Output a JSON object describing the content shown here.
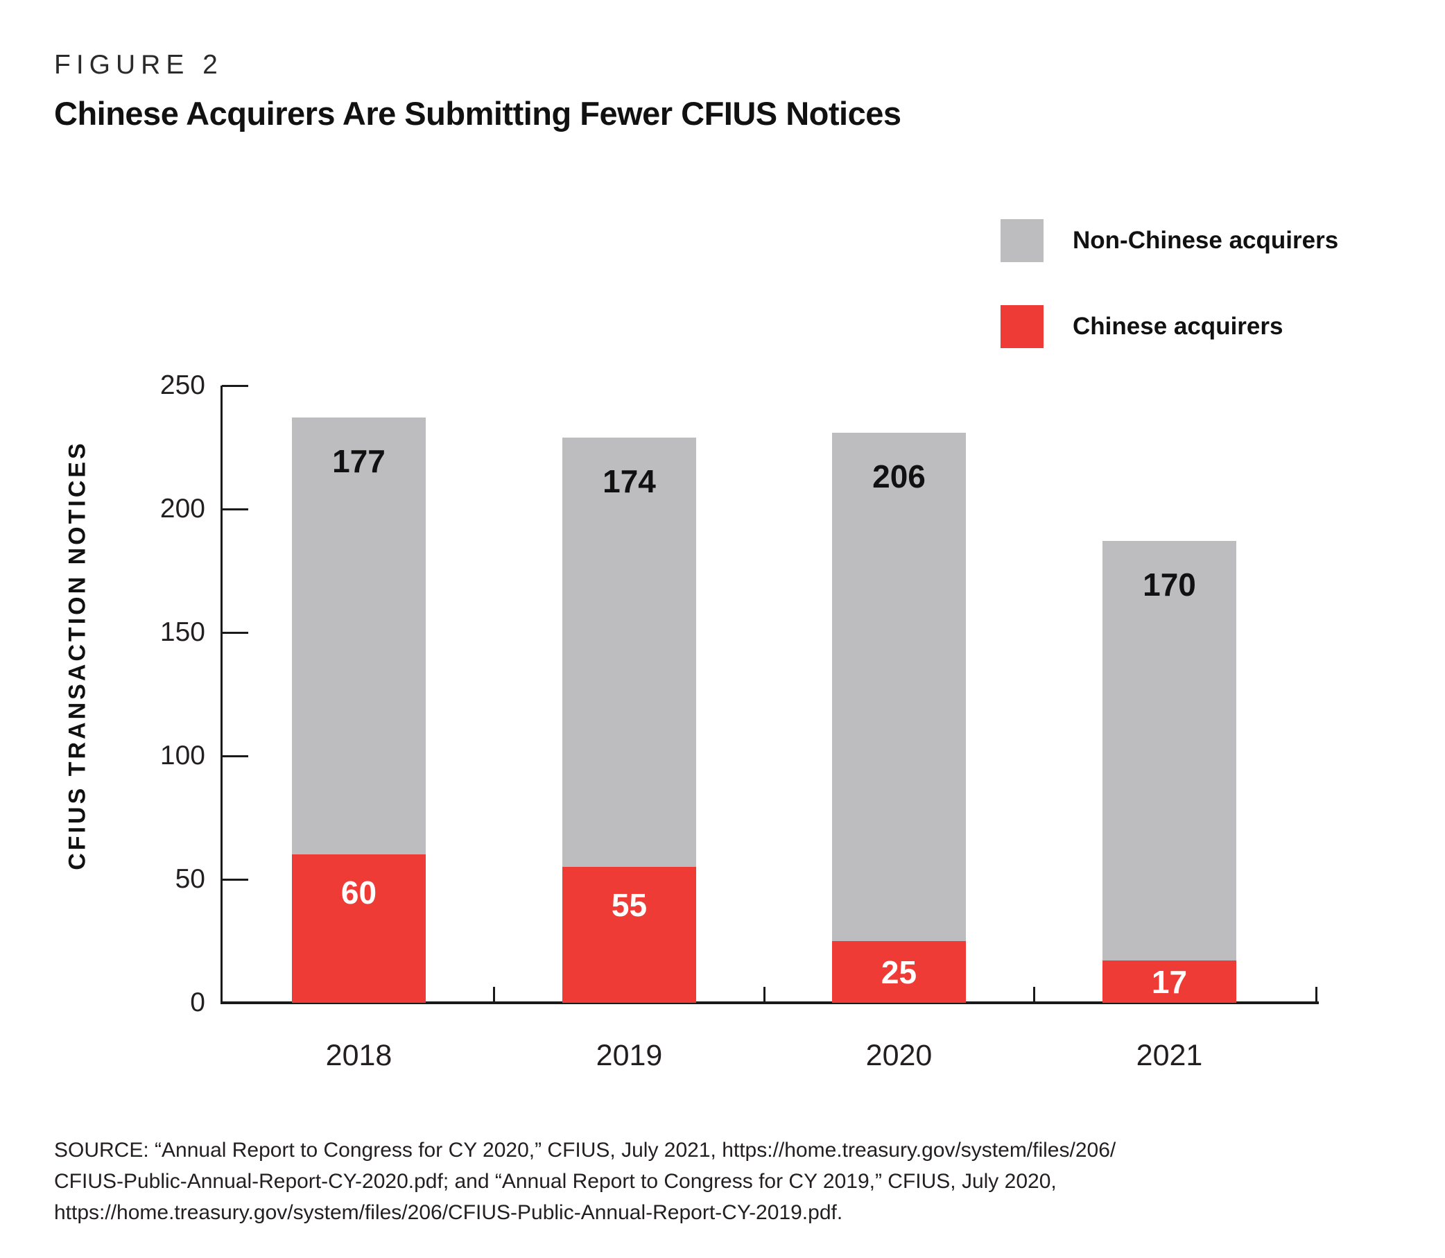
{
  "figure_label": "FIGURE 2",
  "title": "Chinese Acquirers Are Submitting Fewer CFIUS Notices",
  "legend": {
    "items": [
      {
        "label": "Non-Chinese acquirers",
        "color": "#BDBDBF"
      },
      {
        "label": "Chinese acquirers",
        "color": "#EE3B35"
      }
    ]
  },
  "chart_data": {
    "type": "bar",
    "stacked": true,
    "categories": [
      "2018",
      "2019",
      "2020",
      "2021"
    ],
    "series": [
      {
        "name": "Chinese acquirers",
        "color": "#EE3B35",
        "label_color": "#FFFFFF",
        "values": [
          60,
          55,
          25,
          17
        ]
      },
      {
        "name": "Non-Chinese acquirers",
        "color": "#BDBDBF",
        "label_color": "#111111",
        "values": [
          177,
          174,
          206,
          170
        ]
      }
    ],
    "totals": [
      237,
      229,
      231,
      187
    ],
    "xlabel": "",
    "ylabel": "CFIUS TRANSACTION NOTICES",
    "ylim": [
      0,
      250
    ],
    "yticks": [
      0,
      50,
      100,
      150,
      200,
      250
    ],
    "grid": false,
    "legend_position": "top-right",
    "value_labels": "shown-inside-segments"
  },
  "source": {
    "lines": [
      "SOURCE: “Annual Report to Congress for CY 2020,” CFIUS, July 2021, https://home.treasury.gov/system/files/206/",
      "CFIUS-Public-Annual-Report-CY-2020.pdf; and “Annual Report to Congress for CY 2019,” CFIUS, July 2020,",
      "https://home.treasury.gov/system/files/206/CFIUS-Public-Annual-Report-CY-2019.pdf."
    ]
  },
  "colors": {
    "chinese_red": "#EE3B35",
    "non_chinese_gray": "#BDBDBF",
    "axis_black": "#1A1A1A",
    "text": "#231F20"
  }
}
